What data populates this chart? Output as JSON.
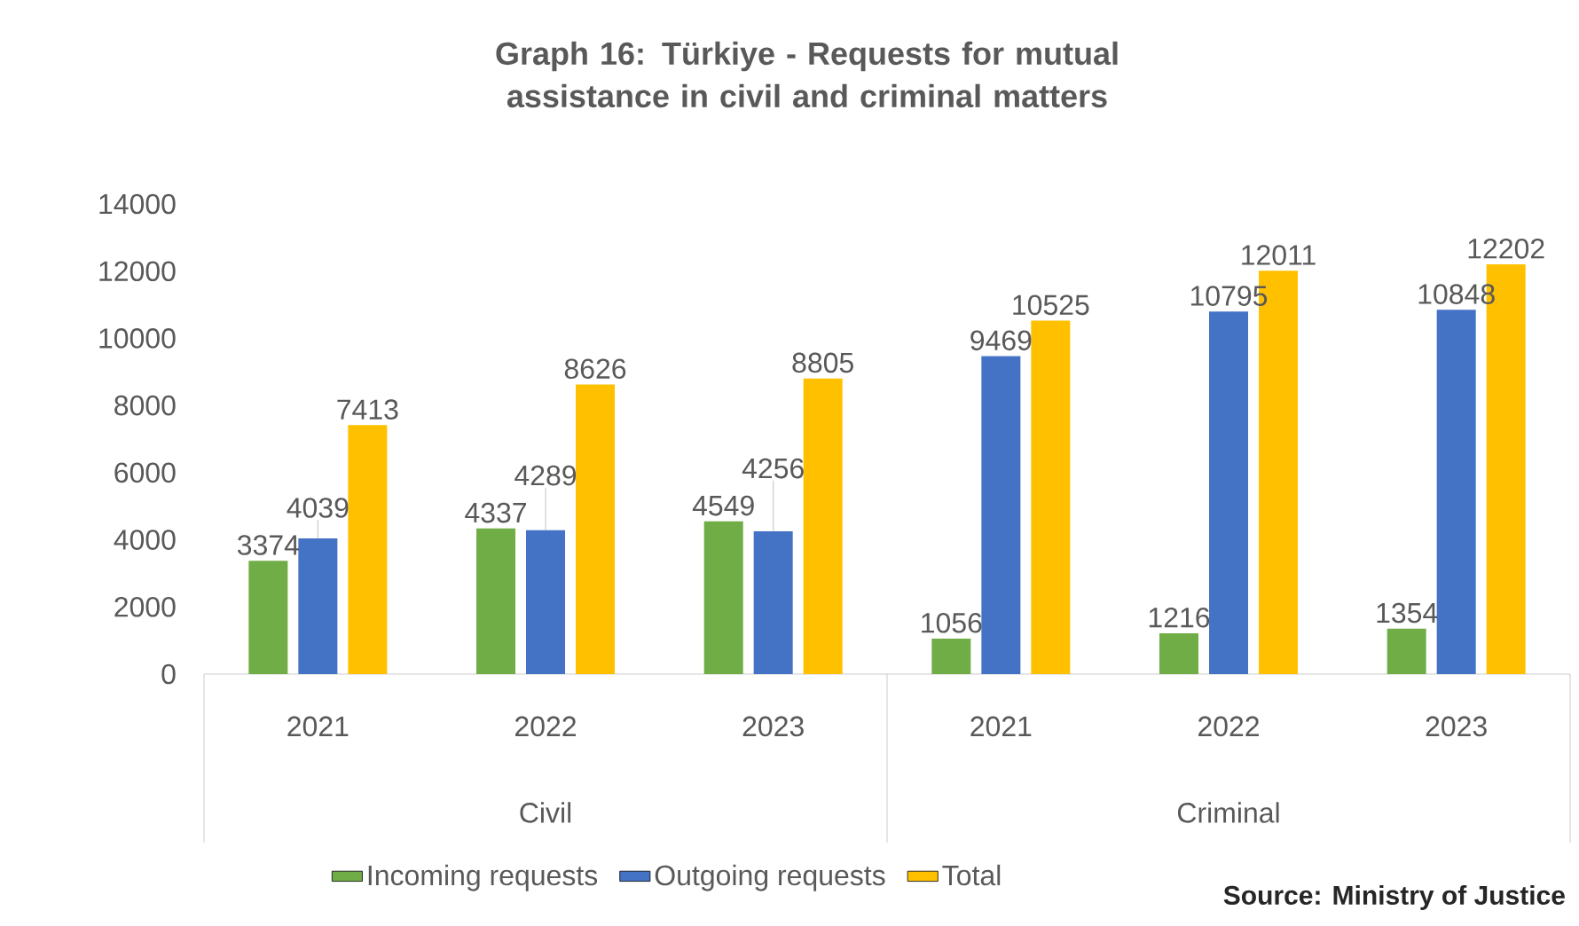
{
  "chart_data": {
    "type": "bar",
    "title": "Graph 16: Türkiye - Requests for mutual assistance in civil and criminal matters",
    "categories": [
      "2021",
      "2022",
      "2023",
      "2021",
      "2022",
      "2023"
    ],
    "series": [
      {
        "name": "Incoming requests",
        "color": "#70ad47",
        "values": [
          3374,
          4337,
          4549,
          1056,
          1216,
          1354
        ]
      },
      {
        "name": "Outgoing requests",
        "color": "#4472c4",
        "values": [
          4039,
          4289,
          4256,
          9469,
          10795,
          10848
        ]
      },
      {
        "name": "Total",
        "color": "#ffc000",
        "values": [
          7413,
          8626,
          8805,
          10525,
          12011,
          12202
        ]
      }
    ],
    "ylim": [
      0,
      14000
    ],
    "yticks": [
      0,
      2000,
      4000,
      6000,
      8000,
      10000,
      12000,
      14000
    ],
    "data_labels": true,
    "legend": "bottom",
    "annotations": [
      "Civil",
      "Criminal",
      "Source: Ministry of Justice"
    ]
  }
}
